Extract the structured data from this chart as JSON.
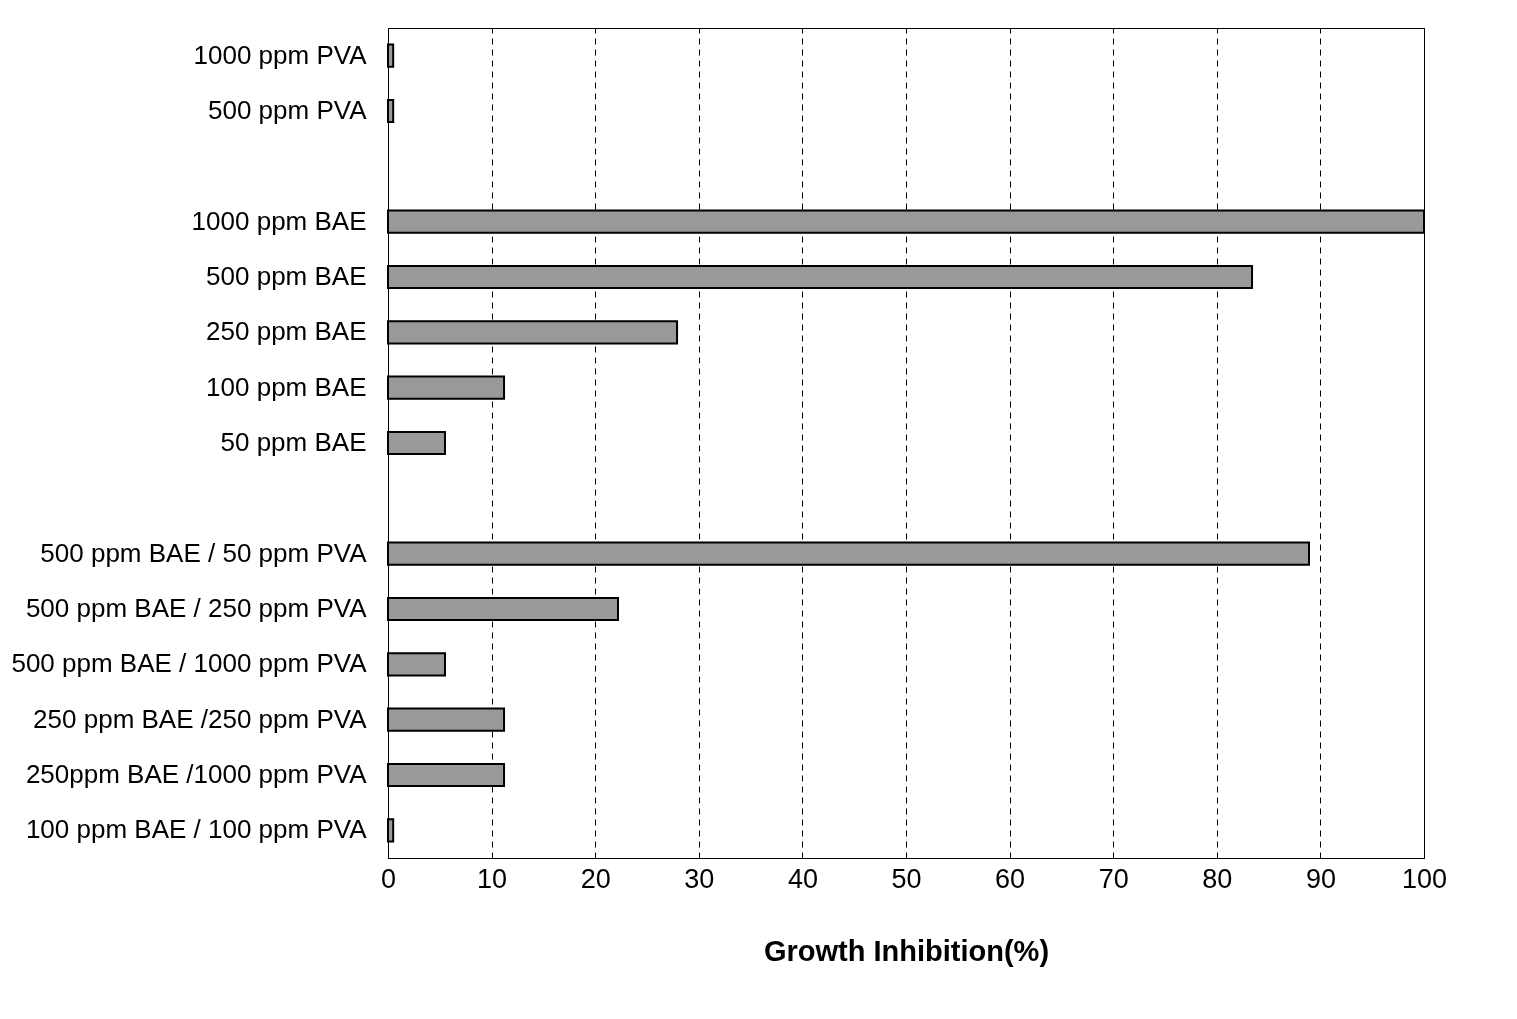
{
  "chart_data": {
    "type": "bar",
    "orientation": "horizontal",
    "xlabel": "Growth Inhibition(%)",
    "categories": [
      "1000 ppm PVA",
      "500 ppm PVA",
      null,
      "1000 ppm BAE",
      "500 ppm BAE",
      "250 ppm BAE",
      "100 ppm BAE",
      "50 ppm BAE",
      null,
      "500 ppm BAE / 50 ppm PVA",
      "500 ppm BAE / 250 ppm PVA",
      "500 ppm BAE / 1000 ppm PVA",
      "250 ppm BAE /250 ppm PVA",
      "250ppm BAE /1000 ppm PVA",
      "100 ppm BAE / 100 ppm PVA"
    ],
    "values": [
      0.5,
      0.5,
      null,
      100,
      83.4,
      27.9,
      11.2,
      5.5,
      null,
      88.9,
      22.2,
      5.5,
      11.2,
      11.2,
      0.5
    ],
    "color": "#999999",
    "xlim": [
      0,
      100
    ],
    "xticks": [
      0,
      10,
      20,
      30,
      40,
      50,
      60,
      70,
      80,
      90,
      100
    ],
    "grid": "x"
  }
}
